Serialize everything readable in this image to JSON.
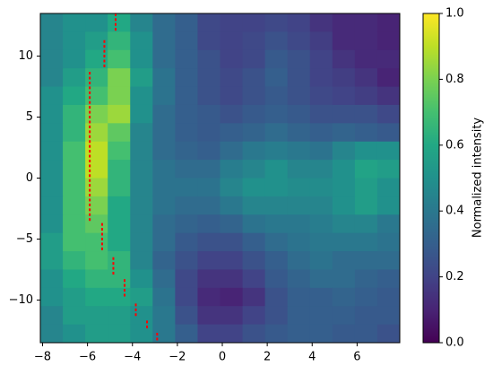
{
  "chart_data": {
    "type": "heatmap",
    "colormap": "viridis",
    "colorbar_label": "Normalized intensity",
    "x_edges": [
      -8.1,
      -7.1,
      -6.1,
      -5.1,
      -4.1,
      -3.1,
      -2.1,
      -1.1,
      -0.1,
      0.9,
      1.9,
      2.9,
      3.9,
      4.9,
      5.9,
      6.9,
      7.9
    ],
    "y_edges": [
      13.5,
      12,
      10.5,
      9,
      7.5,
      6,
      4.5,
      3,
      1.5,
      0,
      -1.5,
      -3,
      -4.5,
      -6,
      -7.5,
      -9,
      -10.5,
      -12,
      -13.5
    ],
    "z": [
      [
        0.45,
        0.5,
        0.5,
        0.6,
        0.45,
        0.35,
        0.3,
        0.22,
        0.2,
        0.2,
        0.22,
        0.2,
        0.15,
        0.12,
        0.12,
        0.1
      ],
      [
        0.45,
        0.5,
        0.55,
        0.65,
        0.5,
        0.35,
        0.3,
        0.22,
        0.2,
        0.22,
        0.25,
        0.22,
        0.18,
        0.12,
        0.12,
        0.1
      ],
      [
        0.45,
        0.5,
        0.6,
        0.7,
        0.5,
        0.35,
        0.3,
        0.25,
        0.2,
        0.22,
        0.28,
        0.25,
        0.2,
        0.15,
        0.12,
        0.12
      ],
      [
        0.45,
        0.55,
        0.65,
        0.8,
        0.55,
        0.38,
        0.3,
        0.25,
        0.22,
        0.25,
        0.3,
        0.25,
        0.2,
        0.18,
        0.15,
        0.1
      ],
      [
        0.5,
        0.6,
        0.7,
        0.8,
        0.5,
        0.38,
        0.3,
        0.25,
        0.22,
        0.25,
        0.28,
        0.25,
        0.22,
        0.2,
        0.18,
        0.15
      ],
      [
        0.5,
        0.65,
        0.8,
        0.85,
        0.5,
        0.35,
        0.3,
        0.28,
        0.25,
        0.28,
        0.3,
        0.28,
        0.25,
        0.25,
        0.25,
        0.22
      ],
      [
        0.5,
        0.65,
        0.85,
        0.75,
        0.45,
        0.35,
        0.3,
        0.28,
        0.3,
        0.32,
        0.35,
        0.32,
        0.3,
        0.32,
        0.3,
        0.28
      ],
      [
        0.5,
        0.7,
        0.9,
        0.7,
        0.45,
        0.35,
        0.32,
        0.3,
        0.35,
        0.4,
        0.42,
        0.4,
        0.38,
        0.45,
        0.5,
        0.5
      ],
      [
        0.5,
        0.7,
        0.9,
        0.65,
        0.45,
        0.38,
        0.35,
        0.35,
        0.42,
        0.45,
        0.5,
        0.45,
        0.45,
        0.5,
        0.58,
        0.55
      ],
      [
        0.5,
        0.7,
        0.85,
        0.65,
        0.45,
        0.38,
        0.38,
        0.38,
        0.45,
        0.5,
        0.5,
        0.48,
        0.48,
        0.5,
        0.55,
        0.5
      ],
      [
        0.5,
        0.7,
        0.8,
        0.6,
        0.45,
        0.38,
        0.35,
        0.35,
        0.4,
        0.45,
        0.45,
        0.45,
        0.45,
        0.5,
        0.55,
        0.5
      ],
      [
        0.5,
        0.7,
        0.75,
        0.6,
        0.45,
        0.35,
        0.32,
        0.3,
        0.32,
        0.38,
        0.4,
        0.4,
        0.42,
        0.45,
        0.45,
        0.4
      ],
      [
        0.55,
        0.7,
        0.7,
        0.6,
        0.45,
        0.35,
        0.28,
        0.25,
        0.25,
        0.3,
        0.35,
        0.38,
        0.4,
        0.4,
        0.4,
        0.38
      ],
      [
        0.55,
        0.65,
        0.7,
        0.65,
        0.45,
        0.32,
        0.25,
        0.2,
        0.2,
        0.25,
        0.3,
        0.35,
        0.38,
        0.35,
        0.35,
        0.35
      ],
      [
        0.5,
        0.6,
        0.65,
        0.65,
        0.5,
        0.35,
        0.22,
        0.15,
        0.15,
        0.2,
        0.28,
        0.32,
        0.35,
        0.35,
        0.32,
        0.3
      ],
      [
        0.5,
        0.55,
        0.6,
        0.6,
        0.55,
        0.38,
        0.22,
        0.12,
        0.1,
        0.15,
        0.25,
        0.3,
        0.3,
        0.32,
        0.3,
        0.28
      ],
      [
        0.45,
        0.55,
        0.55,
        0.55,
        0.5,
        0.4,
        0.25,
        0.15,
        0.15,
        0.2,
        0.25,
        0.3,
        0.3,
        0.3,
        0.28,
        0.28
      ],
      [
        0.45,
        0.5,
        0.55,
        0.55,
        0.5,
        0.4,
        0.3,
        0.2,
        0.2,
        0.25,
        0.28,
        0.3,
        0.3,
        0.28,
        0.28,
        0.25
      ]
    ],
    "clim": [
      0,
      1
    ],
    "cticks": [
      {
        "value": 0,
        "label": "0.0"
      },
      {
        "value": 0.2,
        "label": "0.2"
      },
      {
        "value": 0.4,
        "label": "0.4"
      },
      {
        "value": 0.6,
        "label": "0.6"
      },
      {
        "value": 0.8,
        "label": "0.8"
      },
      {
        "value": 1,
        "label": "1.0"
      }
    ],
    "xlim": [
      -8.1,
      7.9
    ],
    "ylim": [
      -13.5,
      13.5
    ],
    "xticks": [
      {
        "value": -8,
        "label": "−8"
      },
      {
        "value": -6,
        "label": "−6"
      },
      {
        "value": -4,
        "label": "−4"
      },
      {
        "value": -2,
        "label": "−2"
      },
      0,
      2,
      4,
      6
    ],
    "yticks": [
      {
        "value": -10,
        "label": "−10"
      },
      {
        "value": -5,
        "label": "−5"
      },
      0,
      5,
      10
    ],
    "overlay": {
      "type": "scatter",
      "color": "red",
      "x": [
        -4.75,
        -4.75,
        -4.75,
        -4.75,
        -5.25,
        -5.25,
        -5.25,
        -5.25,
        -5.25,
        -5.25,
        -5.9,
        -5.9,
        -5.9,
        -5.9,
        -5.9,
        -5.9,
        -5.9,
        -5.9,
        -5.9,
        -5.9,
        -5.9,
        -5.9,
        -5.9,
        -5.9,
        -5.9,
        -5.9,
        -5.9,
        -5.9,
        -5.9,
        -5.9,
        -5.9,
        -5.9,
        -5.9,
        -5.9,
        -5.9,
        -5.9,
        -5.9,
        -5.9,
        -5.9,
        -5.9,
        -5.9,
        -5.35,
        -5.35,
        -5.35,
        -5.35,
        -5.35,
        -5.35,
        -4.85,
        -4.85,
        -4.85,
        -4.85,
        -4.35,
        -4.35,
        -4.35,
        -4.35,
        -3.85,
        -3.85,
        -3.85,
        -3.35,
        -3.35,
        -2.9,
        -2.9
      ],
      "y": [
        13.4,
        13.0,
        12.6,
        12.2,
        11.2,
        10.8,
        10.4,
        10.0,
        9.6,
        9.2,
        8.6,
        8.2,
        7.8,
        7.4,
        7.0,
        6.6,
        6.2,
        5.8,
        5.4,
        5.0,
        4.6,
        4.2,
        3.8,
        3.4,
        3.0,
        2.6,
        2.2,
        1.8,
        1.4,
        1.0,
        0.6,
        0.2,
        -0.2,
        -0.6,
        -1.0,
        -1.4,
        -1.8,
        -2.2,
        -2.6,
        -3.0,
        -3.4,
        -3.8,
        -4.2,
        -4.6,
        -5.0,
        -5.4,
        -5.8,
        -6.6,
        -7.0,
        -7.4,
        -7.8,
        -8.4,
        -8.8,
        -9.2,
        -9.6,
        -10.4,
        -10.8,
        -11.2,
        -11.8,
        -12.2,
        -12.8,
        -13.2
      ]
    }
  }
}
